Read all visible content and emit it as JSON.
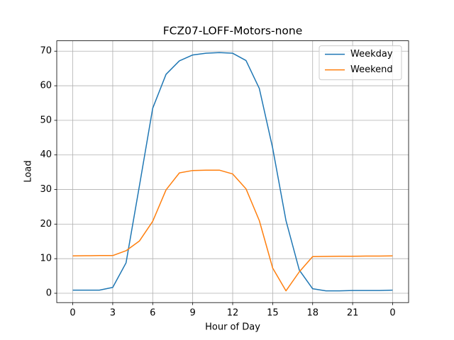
{
  "chart_data": {
    "type": "line",
    "title": "FCZ07-LOFF-Motors-none",
    "xlabel": "Hour of Day",
    "ylabel": "Load",
    "x": [
      0,
      1,
      2,
      3,
      4,
      5,
      6,
      7,
      8,
      9,
      10,
      11,
      12,
      13,
      14,
      15,
      16,
      17,
      18,
      19,
      20,
      21,
      22,
      23,
      24
    ],
    "series": [
      {
        "name": "Weekday",
        "color": "#1f77b4",
        "values": [
          0.9,
          0.9,
          0.9,
          1.7,
          8.8,
          31,
          53.5,
          63.3,
          67.2,
          68.9,
          69.4,
          69.6,
          69.4,
          67.3,
          59.2,
          42,
          21,
          6.7,
          1.3,
          0.7,
          0.7,
          0.8,
          0.8,
          0.8,
          0.9
        ]
      },
      {
        "name": "Weekend",
        "color": "#ff7f0e",
        "values": [
          10.8,
          10.85,
          10.9,
          10.9,
          12.3,
          15.1,
          20.8,
          29.9,
          34.8,
          35.5,
          35.6,
          35.6,
          34.5,
          30.2,
          21,
          7.3,
          0.7,
          6.2,
          10.6,
          10.65,
          10.7,
          10.7,
          10.75,
          10.75,
          10.8
        ]
      }
    ],
    "xlim": [
      -1.2,
      25.2
    ],
    "xticks": [
      0,
      3,
      6,
      9,
      12,
      15,
      18,
      21,
      {
        "value": 24,
        "label": "0"
      }
    ],
    "ylim": [
      -2.7,
      73.0
    ],
    "yticks": [
      0,
      10,
      20,
      30,
      40,
      50,
      60,
      70
    ],
    "grid": true,
    "legend": "upper right"
  }
}
